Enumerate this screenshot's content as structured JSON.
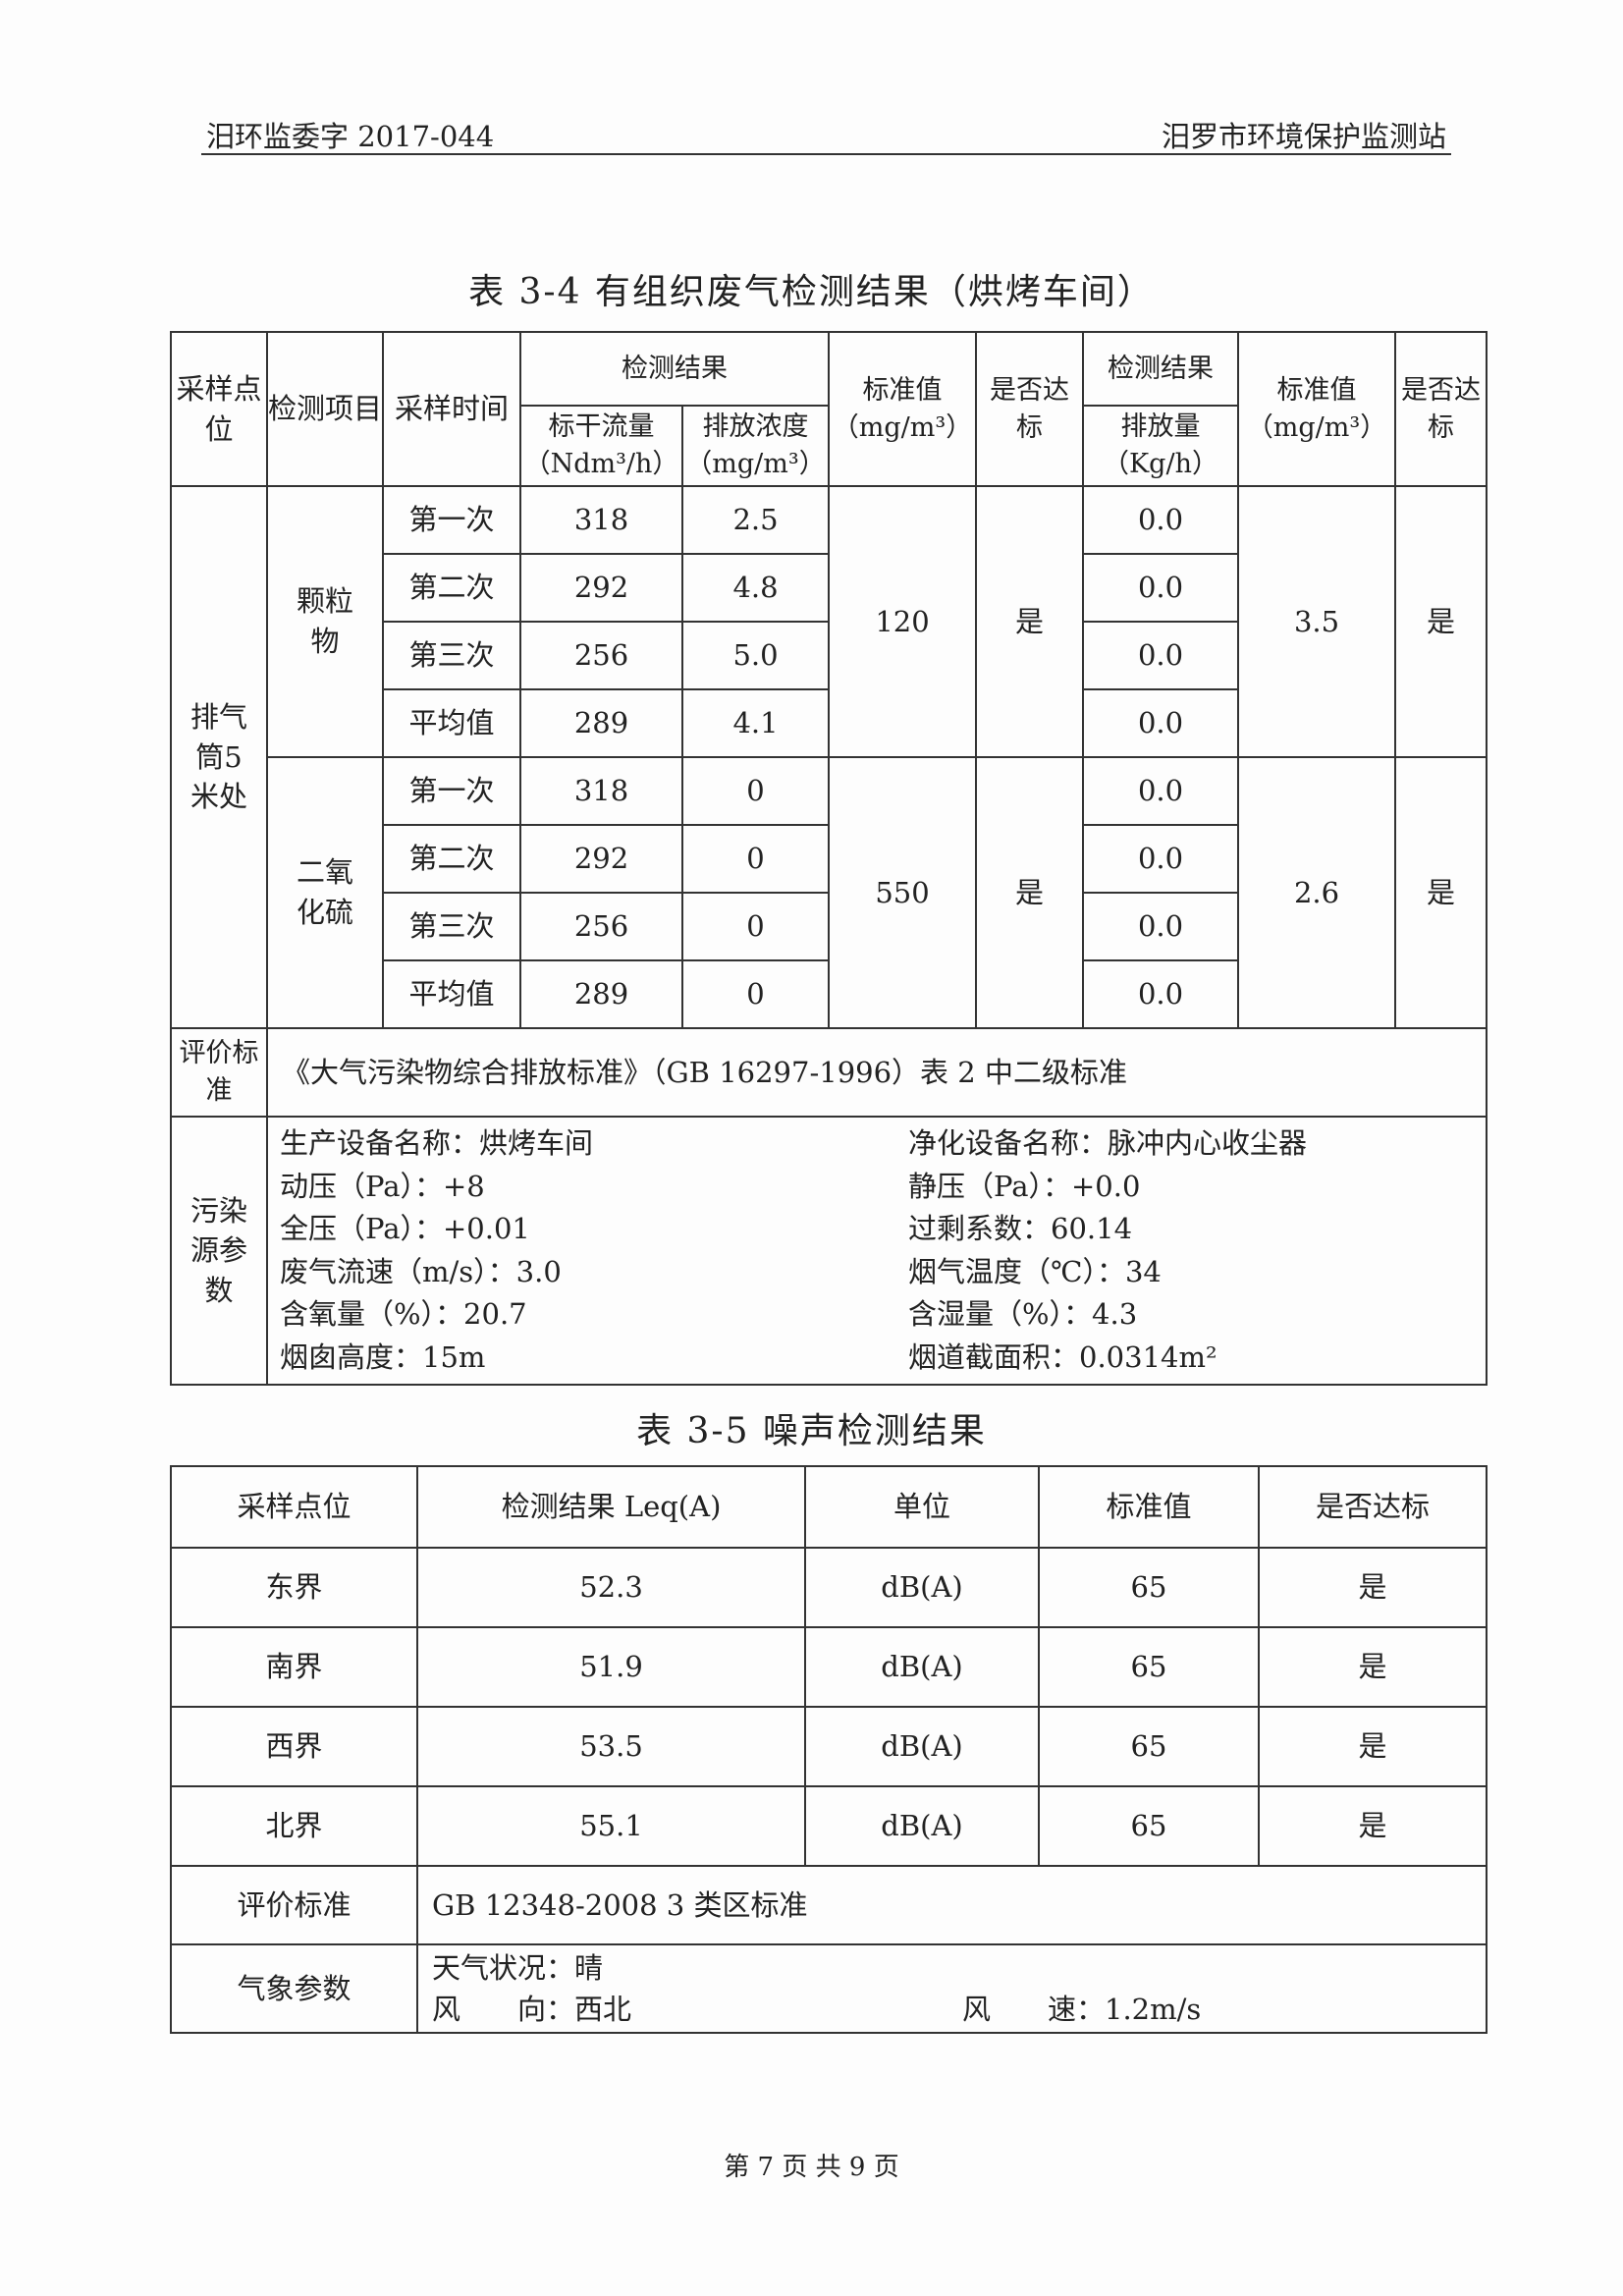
{
  "header": {
    "left": "汨环监委字 2017-044",
    "right": "汨罗市环境保护监测站"
  },
  "table1": {
    "title": "表 3-4 有组织废气检测结果（烘烤车间）",
    "headers": {
      "site": "采样点位",
      "item": "检测项目",
      "time": "采样时间",
      "result": "检测结果",
      "flow": "标干流量",
      "flow_unit": "（Ndm³/h）",
      "conc": "排放浓度",
      "conc_unit": "（mg/m³）",
      "std": "标准值",
      "std_unit": "（mg/m³）",
      "pass": "是否达标",
      "result2": "检测结果",
      "rate": "排放量",
      "rate_unit": "（Kg/h）",
      "std2": "标准值",
      "std2_unit": "（mg/m³）",
      "pass2": "是否达标"
    },
    "site": "排气筒5米处",
    "groups": [
      {
        "item": "颗粒物",
        "std": "120",
        "pass": "是",
        "std2": "3.5",
        "pass2": "是",
        "rows": [
          {
            "time": "第一次",
            "flow": "318",
            "conc": "2.5",
            "rate": "0.0"
          },
          {
            "time": "第二次",
            "flow": "292",
            "conc": "4.8",
            "rate": "0.0"
          },
          {
            "time": "第三次",
            "flow": "256",
            "conc": "5.0",
            "rate": "0.0"
          },
          {
            "time": "平均值",
            "flow": "289",
            "conc": "4.1",
            "rate": "0.0"
          }
        ]
      },
      {
        "item": "二氧化硫",
        "std": "550",
        "pass": "是",
        "std2": "2.6",
        "pass2": "是",
        "rows": [
          {
            "time": "第一次",
            "flow": "318",
            "conc": "0",
            "rate": "0.0"
          },
          {
            "time": "第二次",
            "flow": "292",
            "conc": "0",
            "rate": "0.0"
          },
          {
            "time": "第三次",
            "flow": "256",
            "conc": "0",
            "rate": "0.0"
          },
          {
            "time": "平均值",
            "flow": "289",
            "conc": "0",
            "rate": "0.0"
          }
        ]
      }
    ],
    "eval_label": "评价标准",
    "eval_text": "《大气污染物综合排放标准》（GB 16297-1996）表 2 中二级标准",
    "params_label": "污染源参数",
    "params": [
      "生产设备名称：烘烤车间",
      "净化设备名称：脉冲内心收尘器",
      "动压（Pa）：+8",
      "静压（Pa）：+0.0",
      "全压（Pa）：+0.01",
      "过剩系数：60.14",
      "废气流速（m/s）：3.0",
      "烟气温度（℃）：34",
      "含氧量（%）：20.7",
      "含湿量（%）：4.3",
      "烟囱高度：15m",
      "烟道截面积：0.0314m²"
    ]
  },
  "table2": {
    "title": "表 3-5  噪声检测结果",
    "headers": [
      "采样点位",
      "检测结果 Leq(A)",
      "单位",
      "标准值",
      "是否达标"
    ],
    "rows": [
      [
        "东界",
        "52.3",
        "dB(A)",
        "65",
        "是"
      ],
      [
        "南界",
        "51.9",
        "dB(A)",
        "65",
        "是"
      ],
      [
        "西界",
        "53.5",
        "dB(A)",
        "65",
        "是"
      ],
      [
        "北界",
        "55.1",
        "dB(A)",
        "65",
        "是"
      ]
    ],
    "eval_label": "评价标准",
    "eval_text": "GB 12348-2008 3 类区标准",
    "weather_label": "气象参数",
    "weather": "天气状况：晴",
    "wind_dir": "风　　向：西北",
    "wind_speed": "风　　速：1.2m/s"
  },
  "footer": "第 7 页 共 9 页"
}
